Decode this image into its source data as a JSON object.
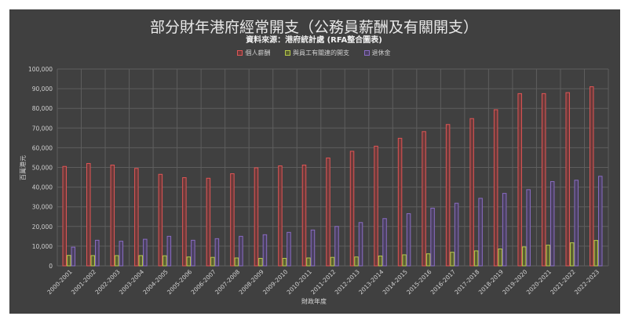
{
  "chart_data": {
    "type": "bar",
    "title": "部分財年港府經常開支（公務員薪酬及有關開支）",
    "subtitle": "資料來源：港府統計處 (RFA整合圖表)",
    "xlabel": "財政年度",
    "ylabel": "百萬港元",
    "ylim": [
      0,
      100000
    ],
    "yticks": [
      "0",
      "10,000",
      "20,000",
      "30,000",
      "40,000",
      "50,000",
      "60,000",
      "70,000",
      "80,000",
      "90,000",
      "100,000"
    ],
    "grid": true,
    "legend_position": "top",
    "categories": [
      "2000-2001",
      "2001-2002",
      "2002-2003",
      "2003-2004",
      "2004-2005",
      "2005-2006",
      "2006-2007",
      "2007-2008",
      "2008-2009",
      "2009-2010",
      "2010-2011",
      "2011-2012",
      "2012-2013",
      "2013-2014",
      "2014-2015",
      "2015-2016",
      "2016-2017",
      "2017-2018",
      "2018-2019",
      "2019-2020",
      "2020-2021",
      "2021-2022",
      "2022-2023"
    ],
    "series": [
      {
        "name": "個人薪酬",
        "color": "#e05555",
        "values": [
          50500,
          52000,
          51200,
          49500,
          46500,
          44800,
          44500,
          46800,
          49800,
          50800,
          51200,
          54800,
          58200,
          60800,
          64800,
          68200,
          71800,
          74800,
          79300,
          87500,
          87500,
          88000,
          91000
        ]
      },
      {
        "name": "與員工有關連的開支",
        "color": "#b5c94a",
        "values": [
          5300,
          5200,
          5200,
          5200,
          5100,
          4500,
          4300,
          4000,
          3800,
          3800,
          4000,
          4300,
          4500,
          5000,
          5600,
          6100,
          6900,
          7600,
          8600,
          9600,
          10500,
          11700,
          12900
        ]
      },
      {
        "name": "退休金",
        "color": "#8a6cc4",
        "values": [
          9500,
          13000,
          12500,
          13500,
          15000,
          13000,
          13800,
          15000,
          15800,
          17000,
          18200,
          20000,
          22000,
          24000,
          26500,
          29300,
          31800,
          34300,
          36800,
          38700,
          42800,
          43500,
          45500
        ]
      }
    ]
  }
}
